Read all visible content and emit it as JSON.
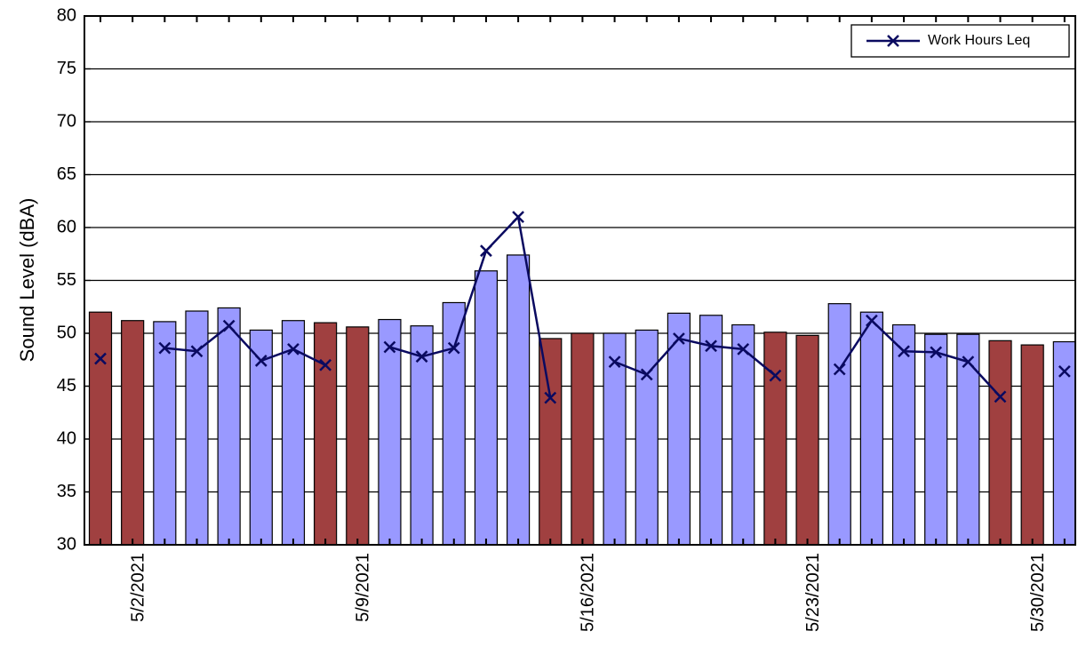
{
  "chart_data": {
    "type": "bar",
    "ylabel": "Sound Level (dBA)",
    "categories": [
      null,
      "5/2/2021",
      null,
      null,
      null,
      null,
      null,
      null,
      "5/9/2021",
      null,
      null,
      null,
      null,
      null,
      null,
      "5/16/2021",
      null,
      null,
      null,
      null,
      null,
      null,
      "5/23/2021",
      null,
      null,
      null,
      null,
      null,
      null,
      "5/30/2021",
      null
    ],
    "values": [
      52.0,
      51.2,
      51.1,
      52.1,
      52.4,
      50.3,
      51.2,
      51.0,
      50.6,
      51.3,
      50.7,
      52.9,
      55.9,
      57.4,
      49.5,
      50.0,
      50.0,
      50.3,
      51.9,
      51.7,
      50.8,
      50.1,
      49.8,
      52.8,
      52.0,
      50.8,
      49.9,
      49.9,
      49.3,
      48.9,
      49.2
    ],
    "colors": [
      "#a04040",
      "#a04040",
      "#9999ff",
      "#9999ff",
      "#9999ff",
      "#9999ff",
      "#9999ff",
      "#a04040",
      "#a04040",
      "#9999ff",
      "#9999ff",
      "#9999ff",
      "#9999ff",
      "#9999ff",
      "#a04040",
      "#a04040",
      "#9999ff",
      "#9999ff",
      "#9999ff",
      "#9999ff",
      "#9999ff",
      "#a04040",
      "#a04040",
      "#9999ff",
      "#9999ff",
      "#9999ff",
      "#9999ff",
      "#9999ff",
      "#a04040",
      "#a04040",
      "#9999ff"
    ],
    "series": [
      {
        "name": "Work Hours Leq",
        "type": "line",
        "color": "#0a0a60",
        "values": [
          47.6,
          null,
          48.6,
          48.3,
          50.7,
          47.4,
          48.5,
          47.0,
          null,
          48.7,
          47.8,
          48.6,
          57.8,
          61.0,
          43.9,
          null,
          47.3,
          46.1,
          49.5,
          48.8,
          48.5,
          46.0,
          null,
          46.6,
          51.2,
          48.3,
          48.2,
          47.3,
          44.0,
          null,
          46.4
        ]
      }
    ],
    "ylim": [
      30,
      80
    ],
    "yticks": [
      30,
      35,
      40,
      45,
      50,
      55,
      60,
      65,
      70,
      75,
      80
    ],
    "grid": true,
    "legend": "upper right"
  }
}
